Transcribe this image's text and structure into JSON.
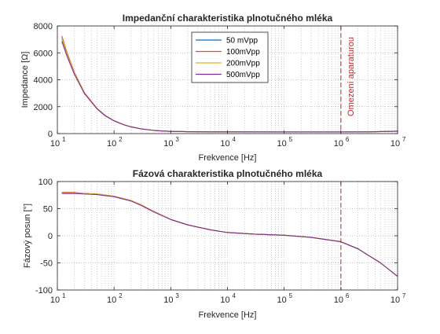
{
  "chart_data": [
    {
      "type": "line",
      "title": "Impedanční charakteristika plnotučného mléka",
      "xlabel": "Frekvence [Hz]",
      "ylabel": "Impedance [Ω]",
      "xscale": "log",
      "xlim": [
        10,
        10000000
      ],
      "ylim": [
        0,
        8000
      ],
      "grid": true,
      "legend_position": "top-center",
      "x_ticks": [
        {
          "base": "10",
          "exp": "1"
        },
        {
          "base": "10",
          "exp": "2"
        },
        {
          "base": "10",
          "exp": "3"
        },
        {
          "base": "10",
          "exp": "4"
        },
        {
          "base": "10",
          "exp": "5"
        },
        {
          "base": "10",
          "exp": "6"
        },
        {
          "base": "10",
          "exp": "7"
        }
      ],
      "y_ticks": [
        "0",
        "2000",
        "4000",
        "6000",
        "8000"
      ],
      "y_tick_values": [
        0,
        2000,
        4000,
        6000,
        8000
      ],
      "x": [
        12,
        15,
        20,
        30,
        50,
        70,
        100,
        150,
        200,
        300,
        500,
        700,
        1000,
        2000,
        5000,
        10000,
        100000,
        1000000,
        3000000,
        10000000
      ],
      "series": [
        {
          "name": "50 mVpp",
          "color": "#0072bd",
          "values": [
            7050,
            5800,
            4450,
            3000,
            1850,
            1330,
            950,
            650,
            500,
            350,
            240,
            195,
            165,
            140,
            130,
            125,
            120,
            120,
            130,
            180
          ]
        },
        {
          "name": "100mVpp",
          "color": "#d95319",
          "values": [
            7250,
            5950,
            4550,
            3050,
            1880,
            1350,
            960,
            660,
            505,
            352,
            242,
            196,
            166,
            140,
            130,
            125,
            120,
            120,
            130,
            180
          ]
        },
        {
          "name": "200mVpp",
          "color": "#edb120",
          "values": [
            7100,
            5850,
            4480,
            3020,
            1860,
            1340,
            955,
            655,
            502,
            351,
            241,
            195,
            165,
            140,
            130,
            125,
            120,
            120,
            130,
            180
          ]
        },
        {
          "name": "500mVpp",
          "color": "#7e2f8e",
          "values": [
            6850,
            5700,
            4400,
            2980,
            1840,
            1320,
            945,
            648,
            498,
            349,
            240,
            194,
            165,
            140,
            130,
            125,
            120,
            120,
            130,
            180
          ]
        }
      ],
      "annotations": [
        {
          "text": "Omezení aparaturou",
          "x": 1000000
        }
      ]
    },
    {
      "type": "line",
      "title": "Fázová charakteristika plnotučného mléka",
      "xlabel": "Frekvence [Hz]",
      "ylabel": "Fázový posun [°]",
      "xscale": "log",
      "xlim": [
        10,
        10000000
      ],
      "ylim": [
        -100,
        100
      ],
      "grid": true,
      "x_ticks": [
        {
          "base": "10",
          "exp": "1"
        },
        {
          "base": "10",
          "exp": "2"
        },
        {
          "base": "10",
          "exp": "3"
        },
        {
          "base": "10",
          "exp": "4"
        },
        {
          "base": "10",
          "exp": "5"
        },
        {
          "base": "10",
          "exp": "6"
        },
        {
          "base": "10",
          "exp": "7"
        }
      ],
      "y_ticks": [
        "-100",
        "-50",
        "0",
        "50",
        "100"
      ],
      "y_tick_values": [
        -100,
        -50,
        0,
        50,
        100
      ],
      "x": [
        12,
        20,
        30,
        50,
        100,
        200,
        300,
        500,
        1000,
        2000,
        5000,
        10000,
        30000,
        100000,
        300000,
        1000000,
        2000000,
        5000000,
        10000000
      ],
      "series": [
        {
          "name": "50 mVpp",
          "color": "#0072bd",
          "values": [
            79,
            79,
            78,
            77,
            73,
            65,
            57,
            45,
            30,
            20,
            11,
            6,
            3,
            1,
            -3,
            -11,
            -24,
            -50,
            -75
          ]
        },
        {
          "name": "100mVpp",
          "color": "#d95319",
          "values": [
            80,
            80,
            78,
            77,
            73,
            65,
            57,
            45,
            30,
            20,
            11,
            6,
            3,
            1,
            -3,
            -11,
            -24,
            -50,
            -75
          ]
        },
        {
          "name": "200mVpp",
          "color": "#edb120",
          "values": [
            79,
            79,
            78,
            77,
            73,
            65,
            57,
            45,
            30,
            20,
            11,
            6,
            3,
            1,
            -3,
            -11,
            -24,
            -50,
            -75
          ]
        },
        {
          "name": "500mVpp",
          "color": "#7e2f8e",
          "values": [
            78,
            78,
            77,
            76,
            72,
            64,
            56,
            44,
            30,
            20,
            11,
            6,
            3,
            1,
            -3,
            -11,
            -24,
            -50,
            -75
          ]
        }
      ],
      "annotations": [
        {
          "text": "",
          "x": 1000000
        }
      ]
    }
  ],
  "colors": {
    "axis": "#262626",
    "grid": "#b0b0b0",
    "limit_line": "#c0282d"
  }
}
